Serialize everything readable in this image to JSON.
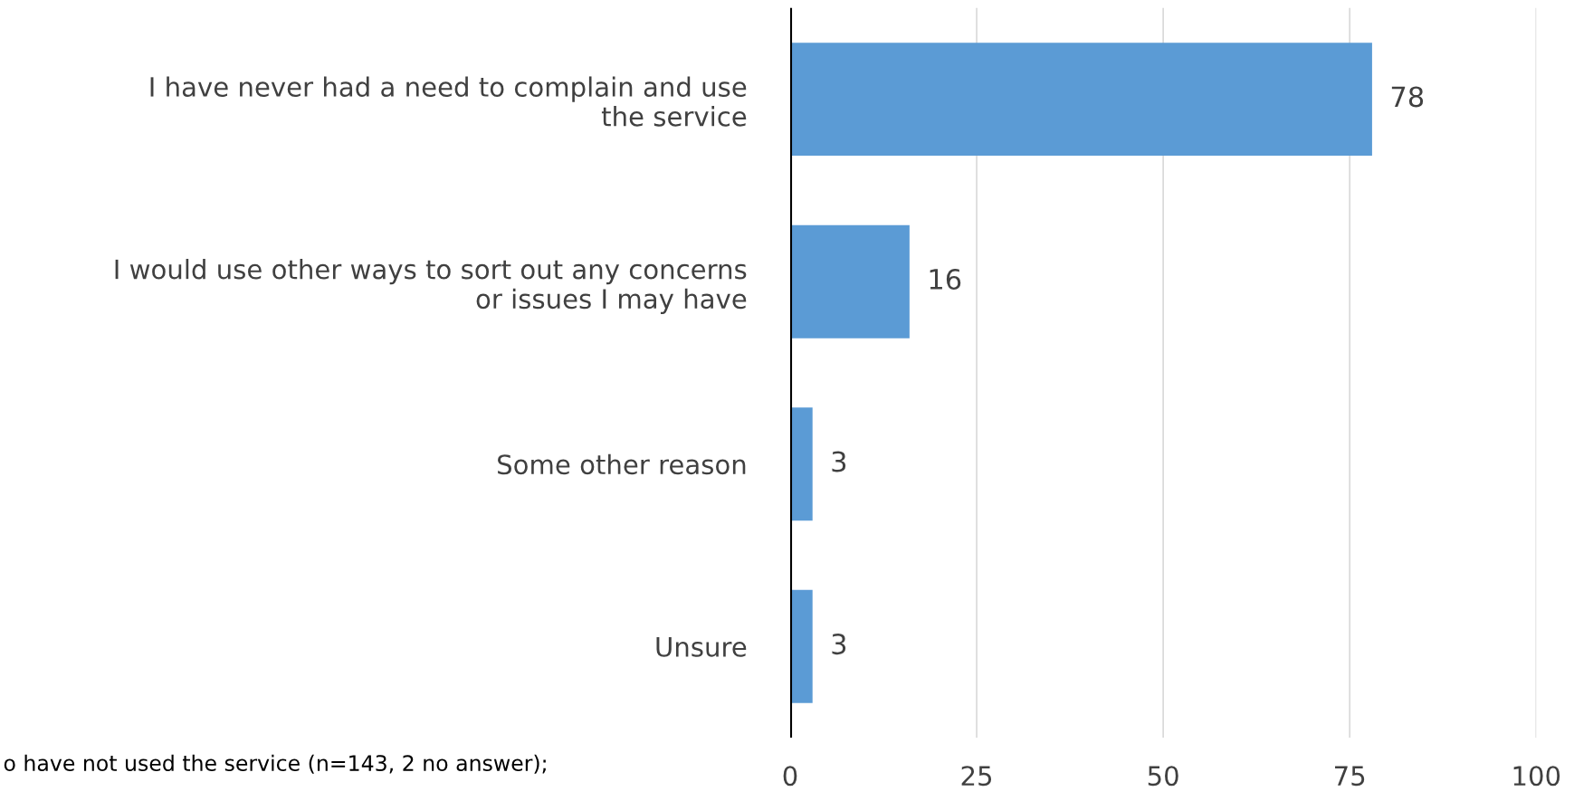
{
  "chart_data": {
    "type": "bar",
    "orientation": "horizontal",
    "categories": [
      "I have never had a need to complain and use\nthe service",
      "I would use other ways to sort out any concerns\nor issues I may have",
      "Some other reason",
      "Unsure"
    ],
    "values": [
      78,
      16,
      3,
      3
    ],
    "color": "#5b9bd5",
    "data_labels": true,
    "xlim": [
      0,
      100
    ],
    "xticks": [
      0,
      25,
      50,
      75,
      100
    ],
    "grid": "x",
    "annotations": [
      "o have not used the service (n=143, 2 no answer);"
    ]
  }
}
